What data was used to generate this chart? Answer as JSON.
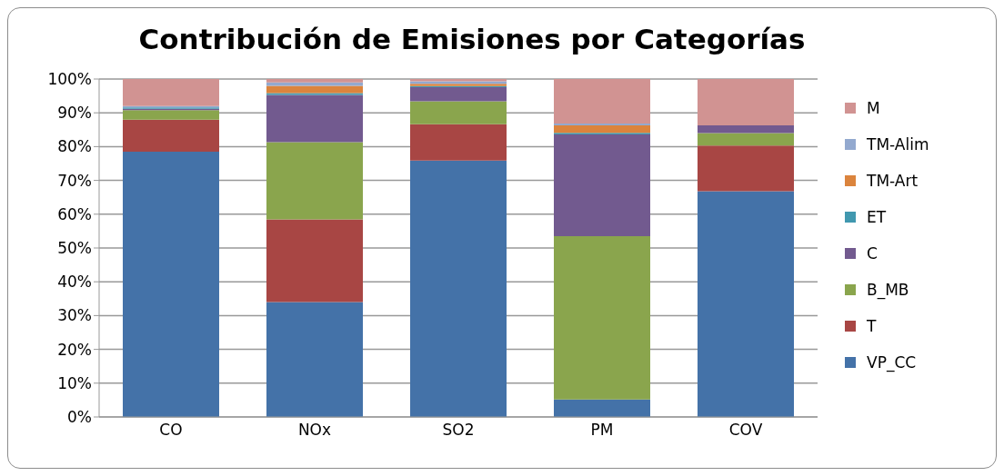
{
  "chart_data": {
    "type": "bar",
    "title": "Contribución de Emisiones por Categorías",
    "categories": [
      "CO",
      "NOx",
      "SO2",
      "PM",
      "COV"
    ],
    "stacked": true,
    "series": [
      {
        "name": "VP_CC",
        "color": "#4472a8",
        "values": [
          78.5,
          34,
          75.9,
          5.2,
          66.8
        ]
      },
      {
        "name": "T",
        "color": "#a84644",
        "values": [
          9.5,
          24.5,
          10.7,
          0,
          13.5
        ]
      },
      {
        "name": "B_MB",
        "color": "#8aa54d",
        "values": [
          2.8,
          22.8,
          6.8,
          48.3,
          3.7
        ]
      },
      {
        "name": "C",
        "color": "#725a8f",
        "values": [
          0.4,
          14,
          4.2,
          30.1,
          2.3
        ]
      },
      {
        "name": "ET",
        "color": "#4198af",
        "values": [
          0.4,
          0.5,
          0.3,
          0.5,
          0
        ]
      },
      {
        "name": "TM-Art",
        "color": "#db843d",
        "values": [
          0,
          2.2,
          0.7,
          2.2,
          0
        ]
      },
      {
        "name": "TM-Alim",
        "color": "#93a9cf",
        "values": [
          0.4,
          1,
          0.7,
          0.5,
          0
        ]
      },
      {
        "name": "M",
        "color": "#d19392",
        "values": [
          8,
          1,
          0.7,
          13.2,
          13.7
        ]
      }
    ],
    "ylim": [
      0,
      100
    ],
    "yticks": [
      {
        "value": 0,
        "label": "0%"
      },
      {
        "value": 10,
        "label": "10%"
      },
      {
        "value": 20,
        "label": "20%"
      },
      {
        "value": 30,
        "label": "30%"
      },
      {
        "value": 40,
        "label": "40%"
      },
      {
        "value": 50,
        "label": "50%"
      },
      {
        "value": 60,
        "label": "60%"
      },
      {
        "value": 70,
        "label": "70%"
      },
      {
        "value": 80,
        "label": "80%"
      },
      {
        "value": 90,
        "label": "90%"
      },
      {
        "value": 100,
        "label": "100%"
      }
    ],
    "grid": "y",
    "legend": "right"
  }
}
